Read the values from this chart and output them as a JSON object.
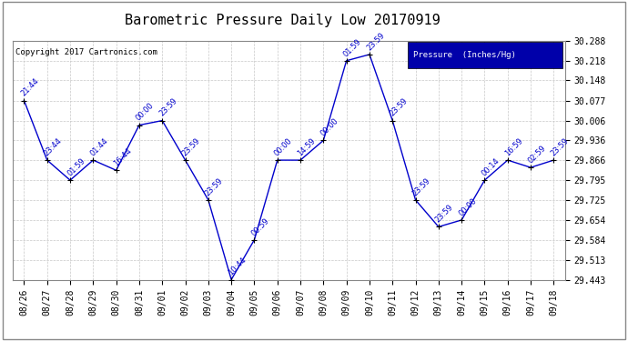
{
  "title": "Barometric Pressure Daily Low 20170919",
  "copyright": "Copyright 2017 Cartronics.com",
  "legend_label": "Pressure  (Inches/Hg)",
  "dates": [
    "08/26",
    "08/27",
    "08/28",
    "08/29",
    "08/30",
    "08/31",
    "09/01",
    "09/02",
    "09/03",
    "09/04",
    "09/05",
    "09/06",
    "09/07",
    "09/08",
    "09/09",
    "09/10",
    "09/11",
    "09/12",
    "09/13",
    "09/14",
    "09/15",
    "09/16",
    "09/17",
    "09/18"
  ],
  "values": [
    30.077,
    29.866,
    29.795,
    29.866,
    29.83,
    29.99,
    30.006,
    29.866,
    29.725,
    29.443,
    29.584,
    29.866,
    29.866,
    29.936,
    30.218,
    30.24,
    30.006,
    29.725,
    29.63,
    29.654,
    29.795,
    29.866,
    29.84,
    29.866
  ],
  "labels": [
    "21:44",
    "23:44",
    "01:59",
    "01:44",
    "16:44",
    "00:00",
    "23:59",
    "23:59",
    "23:59",
    "10:44",
    "00:59",
    "00:00",
    "14:59",
    "00:00",
    "01:59",
    "23:59",
    "23:59",
    "23:59",
    "23:59",
    "00:00",
    "00:14",
    "16:59",
    "02:59",
    "23:59"
  ],
  "ylim": [
    29.443,
    30.288
  ],
  "yticks": [
    29.443,
    29.513,
    29.584,
    29.654,
    29.725,
    29.795,
    29.866,
    29.936,
    30.006,
    30.077,
    30.148,
    30.218,
    30.288
  ],
  "line_color": "#0000cc",
  "marker_color": "#000000",
  "bg_color": "#ffffff",
  "grid_color": "#c8c8c8",
  "title_fontsize": 11,
  "label_fontsize": 6,
  "tick_fontsize": 7,
  "legend_bg": "#0000aa",
  "legend_text_color": "#ffffff",
  "border_color": "#888888"
}
